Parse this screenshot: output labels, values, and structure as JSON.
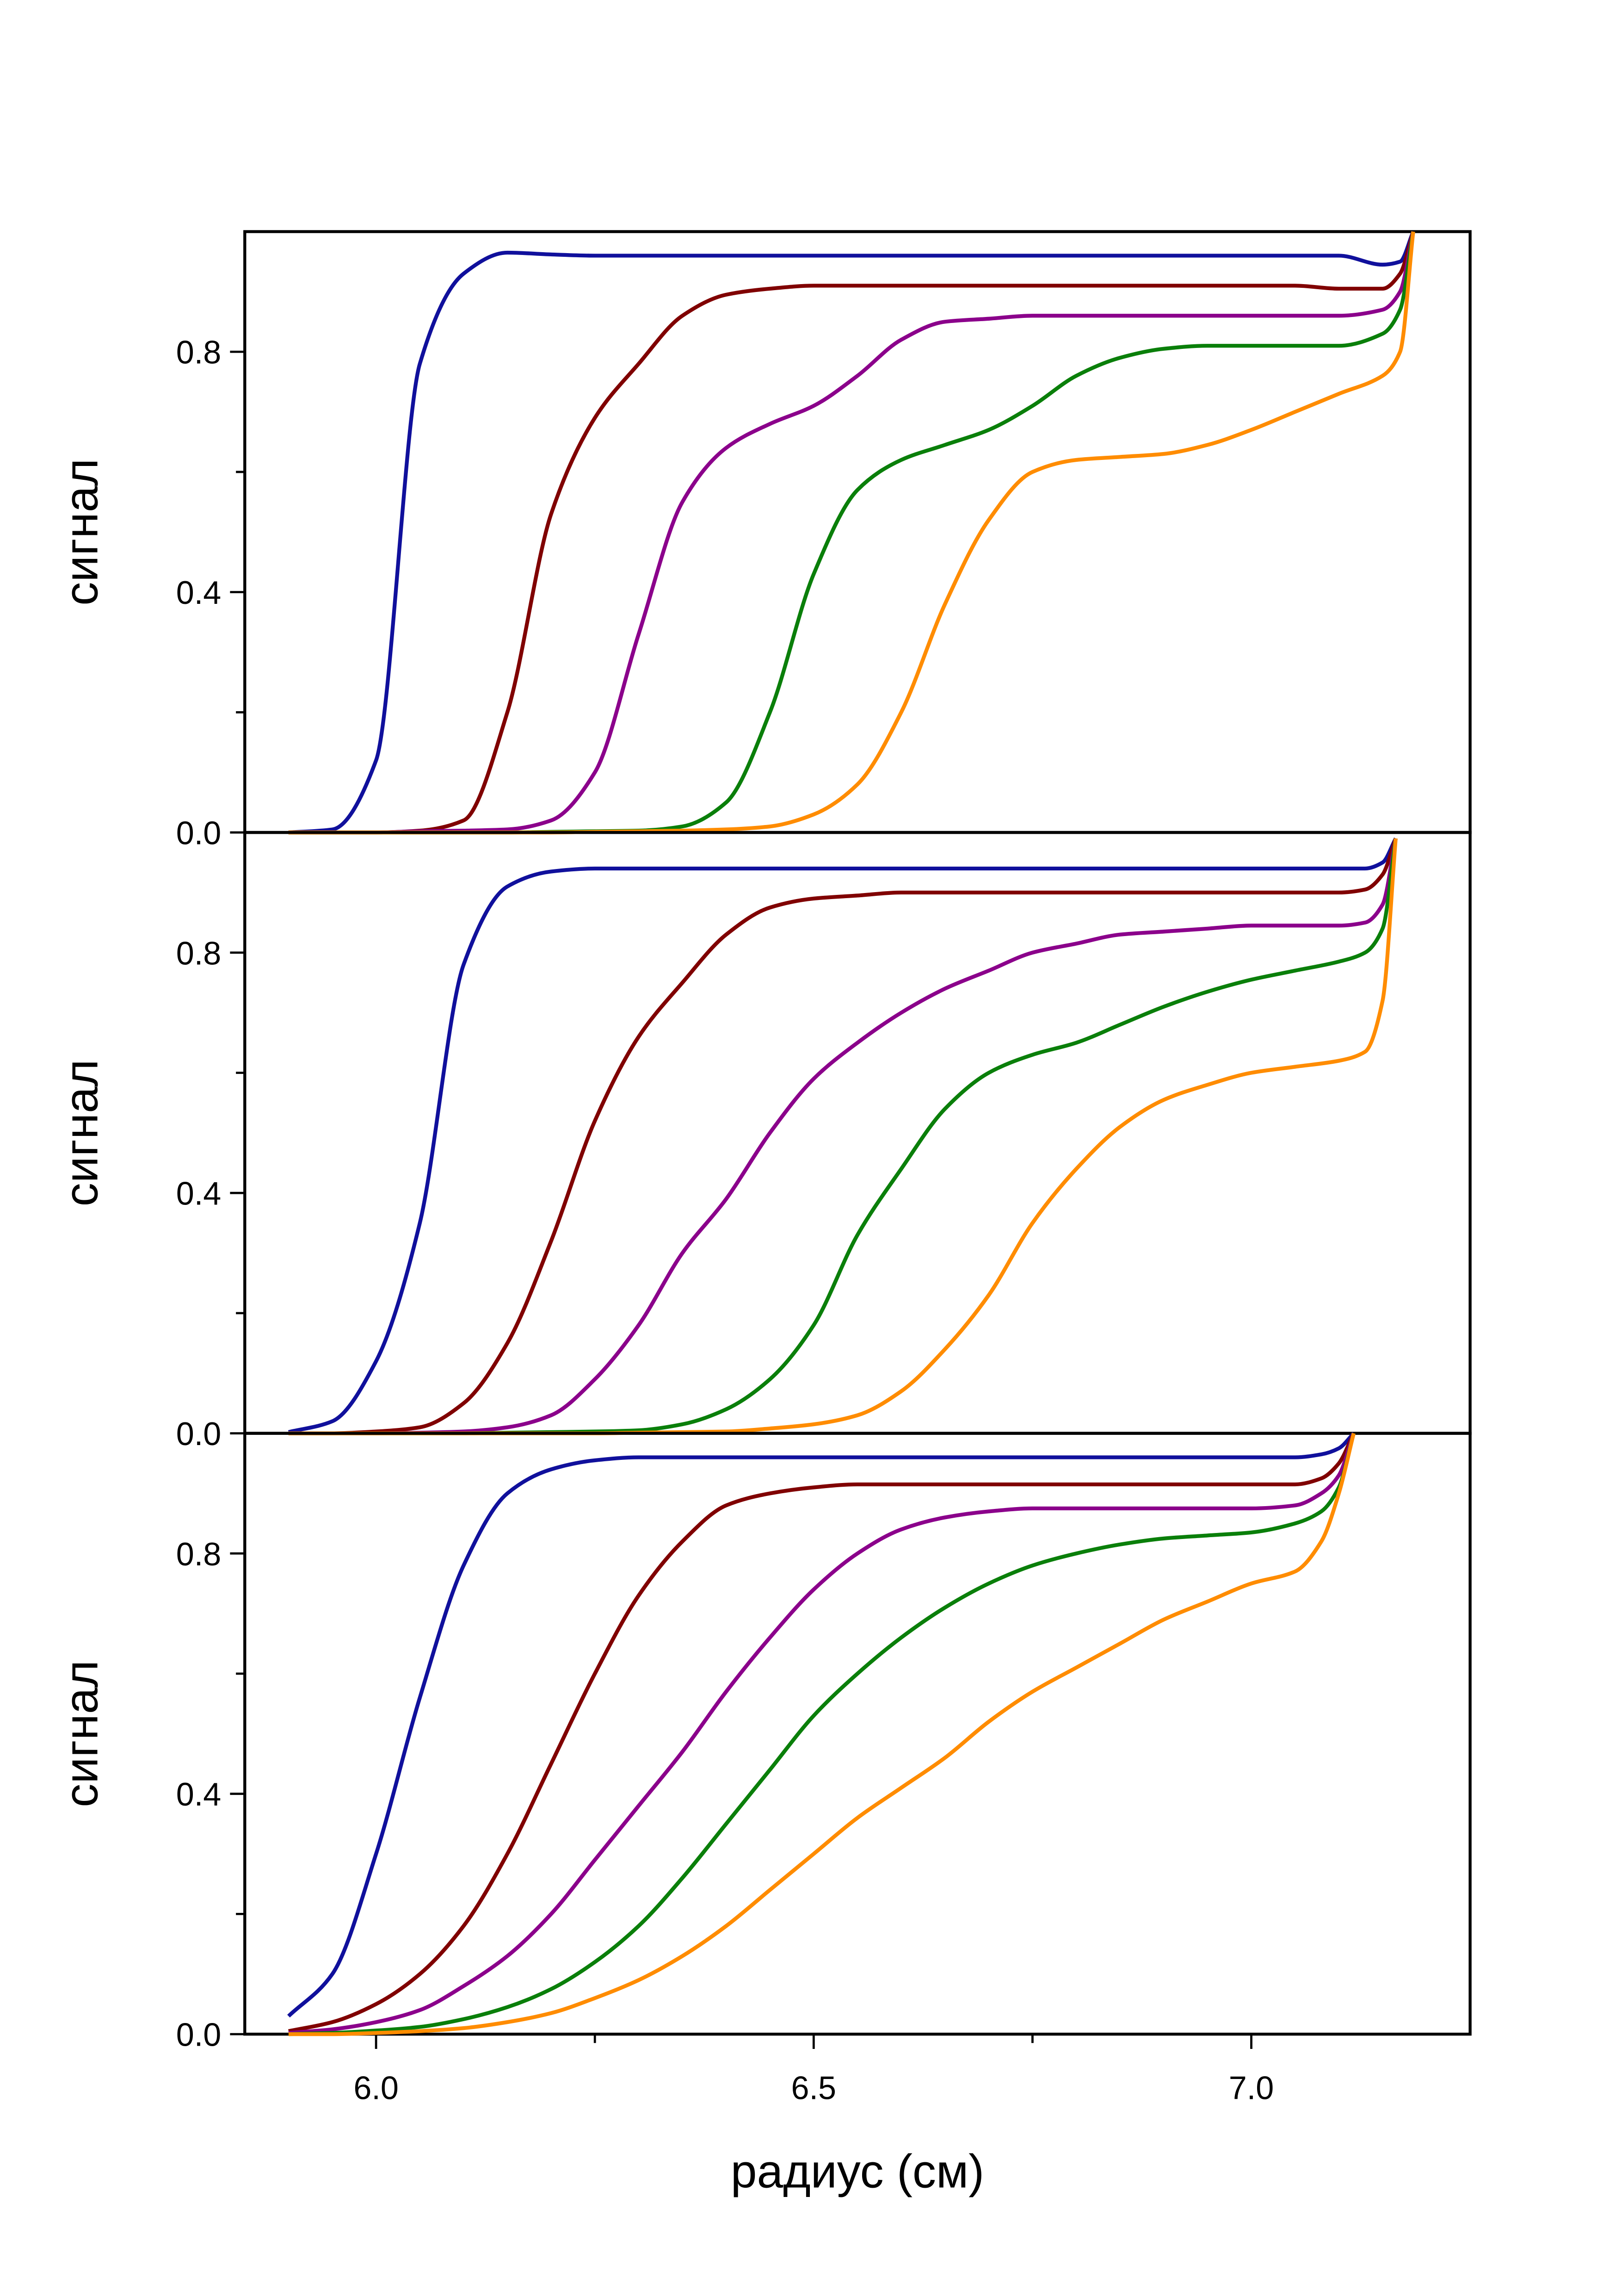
{
  "chart_data": [
    {
      "type": "line",
      "ylabel": "сигнал",
      "xlim": [
        5.85,
        7.25
      ],
      "ylim": [
        0,
        1
      ],
      "yticks": [
        {
          "value": 0,
          "label": "0.0"
        },
        0.4,
        0.8
      ],
      "yminorticks": [
        0.2,
        0.6
      ],
      "x": [
        5.9,
        5.95,
        6.0,
        6.05,
        6.1,
        6.15,
        6.2,
        6.25,
        6.3,
        6.35,
        6.4,
        6.45,
        6.5,
        6.55,
        6.6,
        6.65,
        6.7,
        6.75,
        6.8,
        6.85,
        6.9,
        6.95,
        7.0,
        7.05,
        7.1,
        7.15,
        7.17,
        7.185
      ],
      "series": [
        {
          "color": "#10109c",
          "values": [
            0,
            0.005,
            0.12,
            0.78,
            0.93,
            0.965,
            0.962,
            0.96,
            0.96,
            0.96,
            0.96,
            0.96,
            0.96,
            0.96,
            0.96,
            0.96,
            0.96,
            0.96,
            0.96,
            0.96,
            0.96,
            0.96,
            0.96,
            0.96,
            0.96,
            0.945,
            0.95,
            1.0
          ]
        },
        {
          "color": "#800000",
          "values": [
            0,
            0,
            0,
            0.003,
            0.02,
            0.2,
            0.53,
            0.69,
            0.78,
            0.86,
            0.895,
            0.905,
            0.91,
            0.91,
            0.91,
            0.91,
            0.91,
            0.91,
            0.91,
            0.91,
            0.91,
            0.91,
            0.91,
            0.91,
            0.905,
            0.905,
            0.93,
            1.0
          ]
        },
        {
          "color": "#8b008b",
          "values": [
            0,
            0,
            0,
            0.002,
            0.003,
            0.005,
            0.02,
            0.1,
            0.33,
            0.55,
            0.64,
            0.68,
            0.71,
            0.76,
            0.82,
            0.85,
            0.855,
            0.86,
            0.86,
            0.86,
            0.86,
            0.86,
            0.86,
            0.86,
            0.86,
            0.87,
            0.9,
            1.0
          ]
        },
        {
          "color": "#0a7f0a",
          "values": [
            0,
            0,
            0,
            0,
            0,
            0,
            0.001,
            0.002,
            0.003,
            0.01,
            0.05,
            0.2,
            0.43,
            0.57,
            0.62,
            0.645,
            0.67,
            0.71,
            0.76,
            0.79,
            0.805,
            0.81,
            0.81,
            0.81,
            0.81,
            0.83,
            0.87,
            1.0
          ]
        },
        {
          "color": "#ff8c00",
          "values": [
            0,
            0,
            0,
            0,
            0,
            0,
            0,
            0.001,
            0.002,
            0.003,
            0.005,
            0.01,
            0.03,
            0.08,
            0.2,
            0.38,
            0.52,
            0.6,
            0.62,
            0.625,
            0.63,
            0.645,
            0.67,
            0.7,
            0.73,
            0.76,
            0.8,
            1.0
          ]
        }
      ]
    },
    {
      "type": "line",
      "ylabel": "сигнал",
      "xlim": [
        5.85,
        7.25
      ],
      "ylim": [
        0,
        1
      ],
      "yticks": [
        {
          "value": 0,
          "label": "0.0"
        },
        0.4,
        0.8
      ],
      "yminorticks": [
        0.2,
        0.6
      ],
      "x": [
        5.9,
        5.95,
        6.0,
        6.05,
        6.1,
        6.15,
        6.2,
        6.25,
        6.3,
        6.35,
        6.4,
        6.45,
        6.5,
        6.55,
        6.6,
        6.65,
        6.7,
        6.75,
        6.8,
        6.85,
        6.9,
        6.95,
        7.0,
        7.05,
        7.1,
        7.13,
        7.15,
        7.165
      ],
      "series": [
        {
          "color": "#10109c",
          "values": [
            0.002,
            0.02,
            0.12,
            0.35,
            0.78,
            0.91,
            0.935,
            0.94,
            0.94,
            0.94,
            0.94,
            0.94,
            0.94,
            0.94,
            0.94,
            0.94,
            0.94,
            0.94,
            0.94,
            0.94,
            0.94,
            0.94,
            0.94,
            0.94,
            0.94,
            0.94,
            0.95,
            0.99
          ]
        },
        {
          "color": "#800000",
          "values": [
            0,
            0,
            0.003,
            0.01,
            0.05,
            0.15,
            0.32,
            0.52,
            0.66,
            0.75,
            0.83,
            0.875,
            0.89,
            0.895,
            0.9,
            0.9,
            0.9,
            0.9,
            0.9,
            0.9,
            0.9,
            0.9,
            0.9,
            0.9,
            0.9,
            0.905,
            0.93,
            0.99
          ]
        },
        {
          "color": "#8b008b",
          "values": [
            0,
            0,
            0,
            0.001,
            0.003,
            0.01,
            0.03,
            0.09,
            0.18,
            0.3,
            0.39,
            0.5,
            0.59,
            0.65,
            0.7,
            0.74,
            0.77,
            0.8,
            0.815,
            0.83,
            0.835,
            0.84,
            0.845,
            0.845,
            0.845,
            0.85,
            0.88,
            0.99
          ]
        },
        {
          "color": "#0a7f0a",
          "values": [
            0,
            0,
            0,
            0,
            0,
            0.001,
            0.002,
            0.003,
            0.005,
            0.015,
            0.04,
            0.09,
            0.18,
            0.33,
            0.44,
            0.54,
            0.6,
            0.63,
            0.65,
            0.68,
            0.71,
            0.735,
            0.755,
            0.77,
            0.785,
            0.8,
            0.84,
            0.99
          ]
        },
        {
          "color": "#ff8c00",
          "values": [
            0,
            0,
            0,
            0,
            0,
            0,
            0,
            0,
            0.001,
            0.002,
            0.003,
            0.008,
            0.015,
            0.03,
            0.07,
            0.14,
            0.23,
            0.35,
            0.44,
            0.51,
            0.555,
            0.58,
            0.6,
            0.61,
            0.62,
            0.635,
            0.72,
            0.99
          ]
        }
      ]
    },
    {
      "type": "line",
      "ylabel": "сигнал",
      "xlabel": "радиус (см)",
      "xlim": [
        5.85,
        7.25
      ],
      "ylim": [
        0,
        1
      ],
      "yticks": [
        {
          "value": 0,
          "label": "0.0"
        },
        0.4,
        0.8
      ],
      "yminorticks": [
        0.2,
        0.6
      ],
      "xticks": [
        {
          "value": 6,
          "label": "6.0"
        },
        6.5,
        {
          "value": 7,
          "label": "7.0"
        }
      ],
      "xminorticks": [
        6.25,
        6.75
      ],
      "x": [
        5.9,
        5.95,
        6.0,
        6.05,
        6.1,
        6.15,
        6.2,
        6.25,
        6.3,
        6.35,
        6.4,
        6.45,
        6.5,
        6.55,
        6.6,
        6.65,
        6.7,
        6.75,
        6.8,
        6.85,
        6.9,
        6.95,
        7.0,
        7.05,
        7.08,
        7.1,
        7.117
      ],
      "series": [
        {
          "color": "#10109c",
          "values": [
            0.03,
            0.1,
            0.3,
            0.56,
            0.78,
            0.9,
            0.94,
            0.955,
            0.96,
            0.96,
            0.96,
            0.96,
            0.96,
            0.96,
            0.96,
            0.96,
            0.96,
            0.96,
            0.96,
            0.96,
            0.96,
            0.96,
            0.96,
            0.96,
            0.965,
            0.975,
            1.0
          ]
        },
        {
          "color": "#800000",
          "values": [
            0.005,
            0.02,
            0.05,
            0.1,
            0.18,
            0.3,
            0.45,
            0.6,
            0.73,
            0.82,
            0.88,
            0.9,
            0.91,
            0.915,
            0.915,
            0.915,
            0.915,
            0.915,
            0.915,
            0.915,
            0.915,
            0.915,
            0.915,
            0.915,
            0.925,
            0.95,
            1.0
          ]
        },
        {
          "color": "#8b008b",
          "values": [
            0.002,
            0.008,
            0.02,
            0.04,
            0.08,
            0.13,
            0.2,
            0.29,
            0.38,
            0.47,
            0.57,
            0.66,
            0.74,
            0.8,
            0.84,
            0.86,
            0.87,
            0.875,
            0.875,
            0.875,
            0.875,
            0.875,
            0.875,
            0.88,
            0.9,
            0.93,
            1.0
          ]
        },
        {
          "color": "#0a7f0a",
          "values": [
            0,
            0.002,
            0.006,
            0.012,
            0.025,
            0.045,
            0.075,
            0.12,
            0.18,
            0.26,
            0.35,
            0.44,
            0.53,
            0.6,
            0.66,
            0.71,
            0.75,
            0.78,
            0.8,
            0.815,
            0.825,
            0.83,
            0.835,
            0.85,
            0.87,
            0.91,
            1.0
          ]
        },
        {
          "color": "#ff8c00",
          "values": [
            0,
            0,
            0.002,
            0.005,
            0.01,
            0.02,
            0.035,
            0.06,
            0.09,
            0.13,
            0.18,
            0.24,
            0.3,
            0.36,
            0.41,
            0.46,
            0.52,
            0.57,
            0.61,
            0.65,
            0.69,
            0.72,
            0.75,
            0.77,
            0.82,
            0.9,
            1.0
          ]
        }
      ]
    }
  ]
}
